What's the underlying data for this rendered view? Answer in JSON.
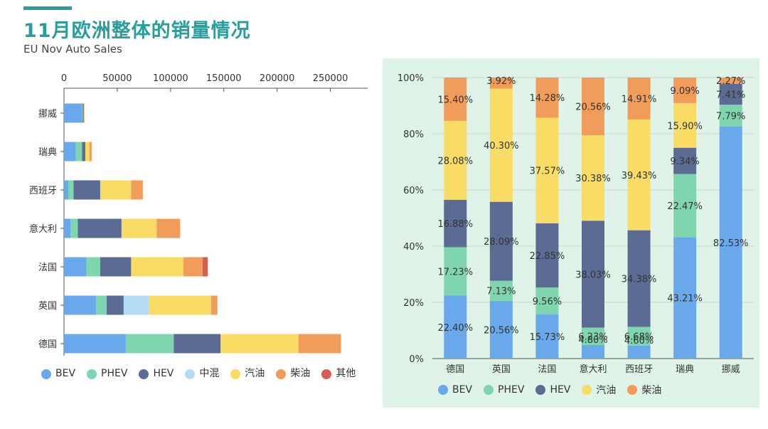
{
  "header": {
    "title": "11月欧洲整体的销量情况",
    "subtitle": "EU Nov Auto Sales"
  },
  "colors": {
    "accent": "#2a9d9d",
    "panel_bg": "#dff3e8",
    "BEV": "#6aa8ec",
    "PHEV": "#7fd6ae",
    "HEV": "#5b6b94",
    "中混": "#b5dcf5",
    "汽油": "#f9dc65",
    "柴油": "#f29c5c",
    "其他": "#d95c52"
  },
  "chart_data": [
    {
      "type": "bar",
      "orientation": "horizontal",
      "stacked": true,
      "categories": [
        "挪威",
        "瑞典",
        "西班牙",
        "意大利",
        "法国",
        "英国",
        "德国"
      ],
      "series": [
        {
          "name": "BEV",
          "values": [
            17000,
            11000,
            4000,
            6000,
            21000,
            30000,
            58000
          ]
        },
        {
          "name": "PHEV",
          "values": [
            700,
            6000,
            5000,
            7000,
            13000,
            10000,
            45000
          ]
        },
        {
          "name": "HEV",
          "values": [
            900,
            3000,
            25000,
            41000,
            29000,
            16000,
            44000
          ]
        },
        {
          "name": "中混",
          "values": [
            0,
            0,
            0,
            0,
            0,
            24000,
            0
          ]
        },
        {
          "name": "汽油",
          "values": [
            200,
            4000,
            29000,
            33000,
            49000,
            58000,
            73000
          ]
        },
        {
          "name": "柴油",
          "values": [
            100,
            2000,
            11000,
            22000,
            18000,
            6000,
            40000
          ]
        },
        {
          "name": "其他",
          "values": [
            0,
            0,
            0,
            0,
            5000,
            0,
            0
          ]
        }
      ],
      "xticks": [
        0,
        50000,
        100000,
        150000,
        200000,
        250000
      ],
      "xtick_labels": [
        "0",
        "50000",
        "100000",
        "150000",
        "200000",
        "250000"
      ],
      "xlim": [
        0,
        285000
      ],
      "x_axis_position": "top",
      "legend_position": "bottom-left",
      "grid": false
    },
    {
      "type": "bar",
      "stacked": true,
      "percent": true,
      "categories": [
        "德国",
        "英国",
        "法国",
        "意大利",
        "西班牙",
        "瑞典",
        "挪威"
      ],
      "series": [
        {
          "name": "BEV",
          "values": [
            22.4,
            20.56,
            15.73,
            4.8,
            4.6,
            43.21,
            82.53
          ],
          "labels": [
            "22.40%",
            "20.56%",
            "15.73%",
            "4.80%",
            "4.60%",
            "43.21%",
            "82.53%"
          ]
        },
        {
          "name": "PHEV",
          "values": [
            17.23,
            7.13,
            9.56,
            6.23,
            6.68,
            22.47,
            7.79
          ],
          "labels": [
            "17.23%",
            "7.13%",
            "9.56%",
            "6.23%",
            "6.68%",
            "22.47%",
            "7.79%"
          ]
        },
        {
          "name": "HEV",
          "values": [
            16.88,
            28.09,
            22.85,
            38.03,
            34.38,
            9.34,
            7.41
          ],
          "labels": [
            "16.88%",
            "28.09%",
            "22.85%",
            "38.03%",
            "34.38%",
            "9.34%",
            "7.41%"
          ]
        },
        {
          "name": "汽油",
          "values": [
            28.08,
            40.3,
            37.57,
            30.38,
            39.43,
            15.9,
            0
          ],
          "labels": [
            "28.08%",
            "40.30%",
            "37.57%",
            "30.38%",
            "39.43%",
            "15.90%",
            ""
          ]
        },
        {
          "name": "柴油",
          "values": [
            15.4,
            3.92,
            14.28,
            20.56,
            14.91,
            9.09,
            2.27
          ],
          "labels": [
            "15.40%",
            "3.92%",
            "14.28%",
            "20.56%",
            "14.91%",
            "9.09%",
            "2.27%"
          ]
        }
      ],
      "ylim": [
        0,
        100
      ],
      "yticks": [
        0,
        20,
        40,
        60,
        80,
        100
      ],
      "ytick_labels": [
        "0%",
        "20%",
        "40%",
        "60%",
        "80%",
        "100%"
      ],
      "legend_position": "bottom",
      "grid": true
    }
  ]
}
